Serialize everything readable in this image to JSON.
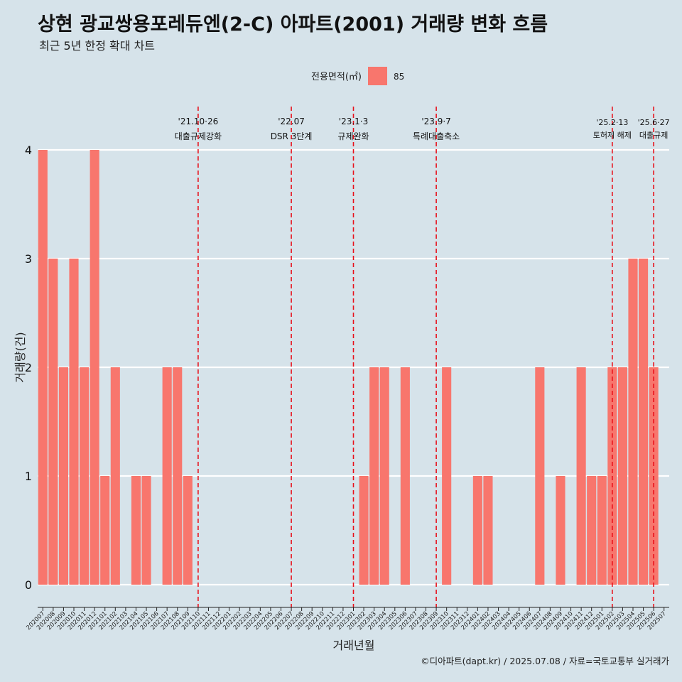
{
  "title": "상현 광교쌍용포레듀엔(2-C) 아파트(2001) 거래량 변화 흐름",
  "subtitle": "최근 5년 한정 확대 차트",
  "caption": "©디아파트(dapt.kr) / 2025.07.08 / 자료=국토교통부 실거래가",
  "legend": {
    "title": "전용면적(㎡)",
    "label": "85",
    "color": "#f8766d"
  },
  "colors": {
    "background": "#d6e3ea",
    "bar": "#f8766d",
    "gridline": "#ffffff",
    "event_line": "#e8101a"
  },
  "chart_data": {
    "type": "bar",
    "xlabel": "거래년월",
    "ylabel": "거래량(건)",
    "ylim": [
      0,
      4
    ],
    "yticks": [
      0,
      1,
      2,
      3,
      4
    ],
    "grid": "horizontal",
    "legend_position": "top",
    "categories": [
      "202007",
      "202008",
      "202009",
      "202010",
      "202011",
      "202012",
      "202101",
      "202102",
      "202103",
      "202104",
      "202105",
      "202106",
      "202107",
      "202108",
      "202109",
      "202110",
      "202111",
      "202112",
      "202201",
      "202202",
      "202203",
      "202204",
      "202205",
      "202206",
      "202207",
      "202208",
      "202209",
      "202210",
      "202211",
      "202212",
      "202301",
      "202302",
      "202303",
      "202304",
      "202305",
      "202306",
      "202307",
      "202308",
      "202309",
      "202310",
      "202311",
      "202312",
      "202401",
      "202402",
      "202403",
      "202404",
      "202405",
      "202406",
      "202407",
      "202408",
      "202409",
      "202410",
      "202411",
      "202412",
      "202501",
      "202502",
      "202503",
      "202504",
      "202505",
      "202506",
      "202507"
    ],
    "series": [
      {
        "name": "85",
        "values": [
          4,
          3,
          2,
          3,
          2,
          4,
          1,
          2,
          0,
          1,
          1,
          0,
          2,
          2,
          1,
          null,
          null,
          null,
          null,
          null,
          null,
          null,
          null,
          null,
          null,
          null,
          null,
          null,
          null,
          null,
          null,
          1,
          2,
          2,
          null,
          2,
          null,
          null,
          null,
          2,
          null,
          null,
          1,
          1,
          null,
          null,
          null,
          null,
          2,
          0,
          1,
          null,
          2,
          1,
          1,
          2,
          2,
          3,
          3,
          2,
          null
        ]
      }
    ],
    "annotations": [
      {
        "date": "202110",
        "line1": "'21.10·26",
        "line2": "대출규제강화"
      },
      {
        "date": "202207",
        "line1": "'22.07",
        "line2": "DSR 3단계"
      },
      {
        "date": "202301",
        "line1": "'23.1·3",
        "line2": "규제완화"
      },
      {
        "date": "202309",
        "line1": "'23.9·7",
        "line2": "특례대출축소"
      },
      {
        "date": "202502",
        "line1": "'25.2·13",
        "line2": "토허제 해제"
      },
      {
        "date": "202506",
        "line1": "'25.6·27",
        "line2": "대출규제"
      }
    ]
  }
}
